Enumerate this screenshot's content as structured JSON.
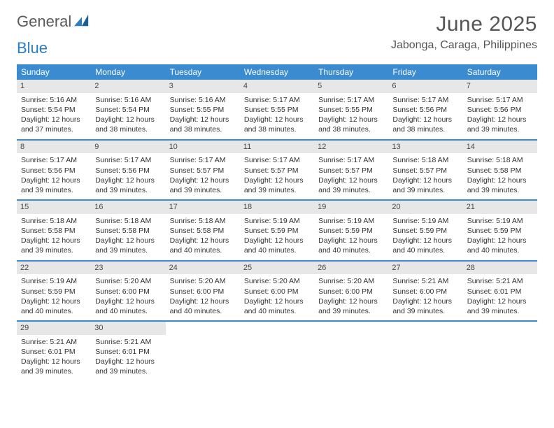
{
  "logo": {
    "word1": "General",
    "word2": "Blue"
  },
  "header": {
    "month": "June 2025",
    "location": "Jabonga, Caraga, Philippines"
  },
  "colors": {
    "header_bg": "#3a8bcf",
    "header_text": "#ffffff",
    "daynum_bg": "#e7e7e7",
    "week_border": "#3a8bcf",
    "text": "#333333",
    "title_text": "#555555",
    "logo_gray": "#5a5a5a",
    "logo_blue": "#2b7dc4",
    "background": "#ffffff"
  },
  "weekdays": [
    "Sunday",
    "Monday",
    "Tuesday",
    "Wednesday",
    "Thursday",
    "Friday",
    "Saturday"
  ],
  "weeks": [
    [
      {
        "day": "1",
        "sunrise": "Sunrise: 5:16 AM",
        "sunset": "Sunset: 5:54 PM",
        "daylight1": "Daylight: 12 hours",
        "daylight2": "and 37 minutes."
      },
      {
        "day": "2",
        "sunrise": "Sunrise: 5:16 AM",
        "sunset": "Sunset: 5:54 PM",
        "daylight1": "Daylight: 12 hours",
        "daylight2": "and 38 minutes."
      },
      {
        "day": "3",
        "sunrise": "Sunrise: 5:16 AM",
        "sunset": "Sunset: 5:55 PM",
        "daylight1": "Daylight: 12 hours",
        "daylight2": "and 38 minutes."
      },
      {
        "day": "4",
        "sunrise": "Sunrise: 5:17 AM",
        "sunset": "Sunset: 5:55 PM",
        "daylight1": "Daylight: 12 hours",
        "daylight2": "and 38 minutes."
      },
      {
        "day": "5",
        "sunrise": "Sunrise: 5:17 AM",
        "sunset": "Sunset: 5:55 PM",
        "daylight1": "Daylight: 12 hours",
        "daylight2": "and 38 minutes."
      },
      {
        "day": "6",
        "sunrise": "Sunrise: 5:17 AM",
        "sunset": "Sunset: 5:56 PM",
        "daylight1": "Daylight: 12 hours",
        "daylight2": "and 38 minutes."
      },
      {
        "day": "7",
        "sunrise": "Sunrise: 5:17 AM",
        "sunset": "Sunset: 5:56 PM",
        "daylight1": "Daylight: 12 hours",
        "daylight2": "and 39 minutes."
      }
    ],
    [
      {
        "day": "8",
        "sunrise": "Sunrise: 5:17 AM",
        "sunset": "Sunset: 5:56 PM",
        "daylight1": "Daylight: 12 hours",
        "daylight2": "and 39 minutes."
      },
      {
        "day": "9",
        "sunrise": "Sunrise: 5:17 AM",
        "sunset": "Sunset: 5:56 PM",
        "daylight1": "Daylight: 12 hours",
        "daylight2": "and 39 minutes."
      },
      {
        "day": "10",
        "sunrise": "Sunrise: 5:17 AM",
        "sunset": "Sunset: 5:57 PM",
        "daylight1": "Daylight: 12 hours",
        "daylight2": "and 39 minutes."
      },
      {
        "day": "11",
        "sunrise": "Sunrise: 5:17 AM",
        "sunset": "Sunset: 5:57 PM",
        "daylight1": "Daylight: 12 hours",
        "daylight2": "and 39 minutes."
      },
      {
        "day": "12",
        "sunrise": "Sunrise: 5:17 AM",
        "sunset": "Sunset: 5:57 PM",
        "daylight1": "Daylight: 12 hours",
        "daylight2": "and 39 minutes."
      },
      {
        "day": "13",
        "sunrise": "Sunrise: 5:18 AM",
        "sunset": "Sunset: 5:57 PM",
        "daylight1": "Daylight: 12 hours",
        "daylight2": "and 39 minutes."
      },
      {
        "day": "14",
        "sunrise": "Sunrise: 5:18 AM",
        "sunset": "Sunset: 5:58 PM",
        "daylight1": "Daylight: 12 hours",
        "daylight2": "and 39 minutes."
      }
    ],
    [
      {
        "day": "15",
        "sunrise": "Sunrise: 5:18 AM",
        "sunset": "Sunset: 5:58 PM",
        "daylight1": "Daylight: 12 hours",
        "daylight2": "and 39 minutes."
      },
      {
        "day": "16",
        "sunrise": "Sunrise: 5:18 AM",
        "sunset": "Sunset: 5:58 PM",
        "daylight1": "Daylight: 12 hours",
        "daylight2": "and 39 minutes."
      },
      {
        "day": "17",
        "sunrise": "Sunrise: 5:18 AM",
        "sunset": "Sunset: 5:58 PM",
        "daylight1": "Daylight: 12 hours",
        "daylight2": "and 40 minutes."
      },
      {
        "day": "18",
        "sunrise": "Sunrise: 5:19 AM",
        "sunset": "Sunset: 5:59 PM",
        "daylight1": "Daylight: 12 hours",
        "daylight2": "and 40 minutes."
      },
      {
        "day": "19",
        "sunrise": "Sunrise: 5:19 AM",
        "sunset": "Sunset: 5:59 PM",
        "daylight1": "Daylight: 12 hours",
        "daylight2": "and 40 minutes."
      },
      {
        "day": "20",
        "sunrise": "Sunrise: 5:19 AM",
        "sunset": "Sunset: 5:59 PM",
        "daylight1": "Daylight: 12 hours",
        "daylight2": "and 40 minutes."
      },
      {
        "day": "21",
        "sunrise": "Sunrise: 5:19 AM",
        "sunset": "Sunset: 5:59 PM",
        "daylight1": "Daylight: 12 hours",
        "daylight2": "and 40 minutes."
      }
    ],
    [
      {
        "day": "22",
        "sunrise": "Sunrise: 5:19 AM",
        "sunset": "Sunset: 5:59 PM",
        "daylight1": "Daylight: 12 hours",
        "daylight2": "and 40 minutes."
      },
      {
        "day": "23",
        "sunrise": "Sunrise: 5:20 AM",
        "sunset": "Sunset: 6:00 PM",
        "daylight1": "Daylight: 12 hours",
        "daylight2": "and 40 minutes."
      },
      {
        "day": "24",
        "sunrise": "Sunrise: 5:20 AM",
        "sunset": "Sunset: 6:00 PM",
        "daylight1": "Daylight: 12 hours",
        "daylight2": "and 40 minutes."
      },
      {
        "day": "25",
        "sunrise": "Sunrise: 5:20 AM",
        "sunset": "Sunset: 6:00 PM",
        "daylight1": "Daylight: 12 hours",
        "daylight2": "and 40 minutes."
      },
      {
        "day": "26",
        "sunrise": "Sunrise: 5:20 AM",
        "sunset": "Sunset: 6:00 PM",
        "daylight1": "Daylight: 12 hours",
        "daylight2": "and 39 minutes."
      },
      {
        "day": "27",
        "sunrise": "Sunrise: 5:21 AM",
        "sunset": "Sunset: 6:00 PM",
        "daylight1": "Daylight: 12 hours",
        "daylight2": "and 39 minutes."
      },
      {
        "day": "28",
        "sunrise": "Sunrise: 5:21 AM",
        "sunset": "Sunset: 6:01 PM",
        "daylight1": "Daylight: 12 hours",
        "daylight2": "and 39 minutes."
      }
    ],
    [
      {
        "day": "29",
        "sunrise": "Sunrise: 5:21 AM",
        "sunset": "Sunset: 6:01 PM",
        "daylight1": "Daylight: 12 hours",
        "daylight2": "and 39 minutes."
      },
      {
        "day": "30",
        "sunrise": "Sunrise: 5:21 AM",
        "sunset": "Sunset: 6:01 PM",
        "daylight1": "Daylight: 12 hours",
        "daylight2": "and 39 minutes."
      },
      {
        "empty": true
      },
      {
        "empty": true
      },
      {
        "empty": true
      },
      {
        "empty": true
      },
      {
        "empty": true
      }
    ]
  ]
}
